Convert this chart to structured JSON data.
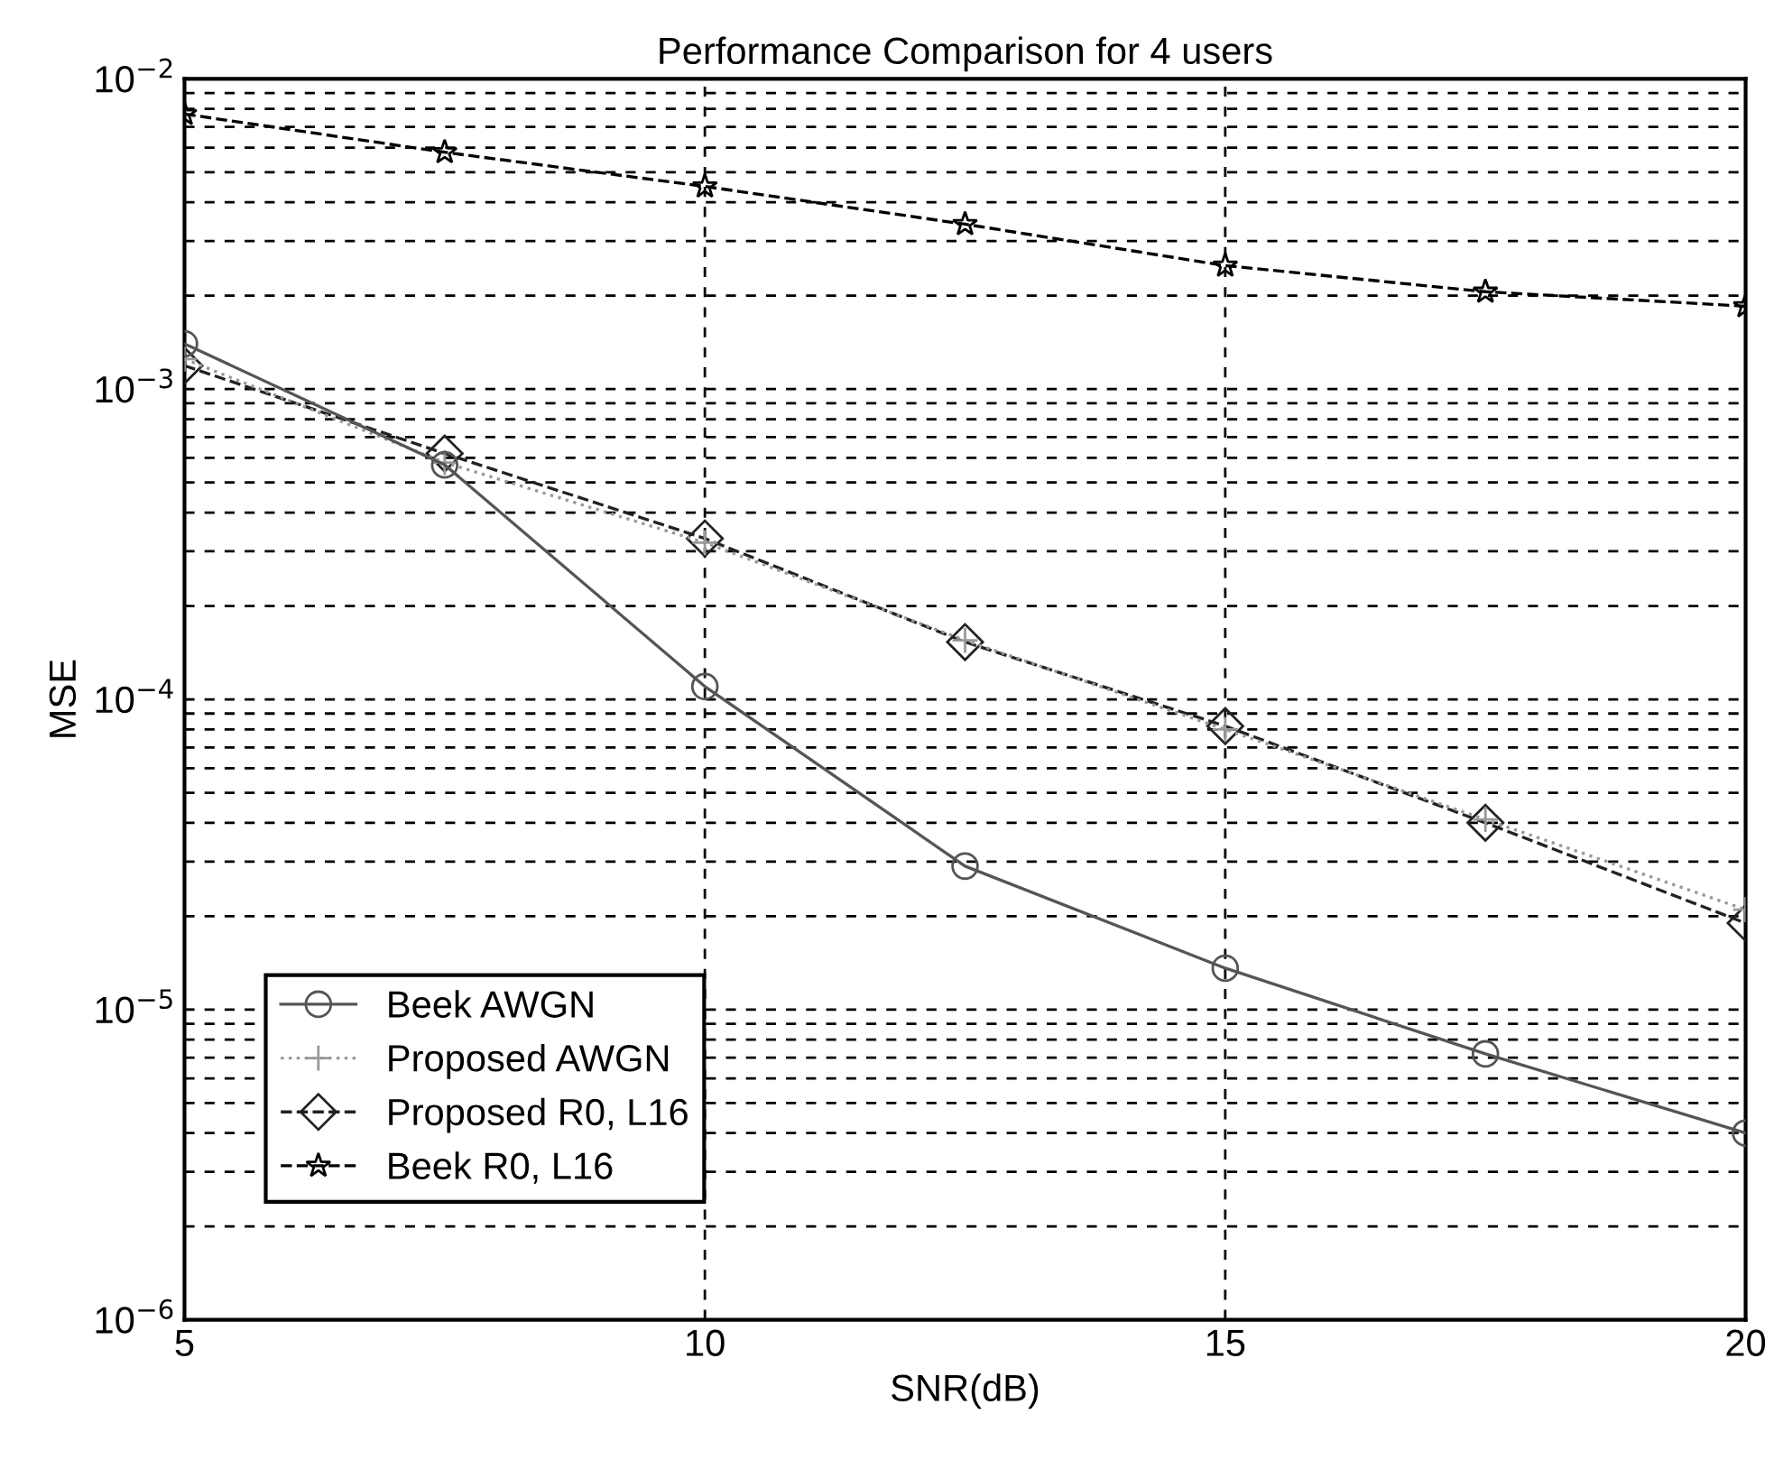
{
  "chart_data": {
    "type": "line",
    "title": "Performance Comparison for 4 users",
    "xlabel": "SNR(dB)",
    "ylabel": "MSE",
    "x": [
      5,
      7.5,
      10,
      12.5,
      15,
      17.5,
      20
    ],
    "series": [
      {
        "name": "Beek AWGN",
        "color": "#555555",
        "marker": "circle",
        "line_style": "solid",
        "values": [
          0.0014,
          0.00057,
          0.00011,
          2.9e-05,
          1.36e-05,
          7.2e-06,
          4e-06
        ]
      },
      {
        "name": "Proposed AWGN",
        "color": "#999999",
        "marker": "cross",
        "line_style": "dotted",
        "values": [
          0.00125,
          0.00058,
          0.00032,
          0.000155,
          8e-05,
          4.1e-05,
          2.1e-05
        ]
      },
      {
        "name": "Proposed R0, L16",
        "color": "#222222",
        "marker": "diamond",
        "line_style": "dashed",
        "values": [
          0.00119,
          0.00062,
          0.00033,
          0.000153,
          8.2e-05,
          4e-05,
          1.9e-05
        ]
      },
      {
        "name": "Beek R0, L16",
        "color": "#000000",
        "marker": "star",
        "line_style": "dashed",
        "values": [
          0.0077,
          0.0058,
          0.0045,
          0.0034,
          0.0025,
          0.00206,
          0.00185
        ]
      }
    ],
    "log": "y",
    "xlim": [
      5,
      20
    ],
    "xticks": [
      5,
      10,
      15,
      20
    ],
    "ylim": [
      1e-06,
      0.01
    ],
    "yticks": [
      {
        "value": 1e-06,
        "label": "10$^{−6}$"
      },
      {
        "value": 1e-05,
        "label": "10$^{−5}$"
      },
      {
        "value": 0.0001,
        "label": "10$^{−4}$"
      },
      {
        "value": 0.001,
        "label": "10$^{−3}$"
      },
      {
        "value": 0.01,
        "label": "10$^{−2}$"
      }
    ],
    "grid": true,
    "legend": "bottom left"
  }
}
